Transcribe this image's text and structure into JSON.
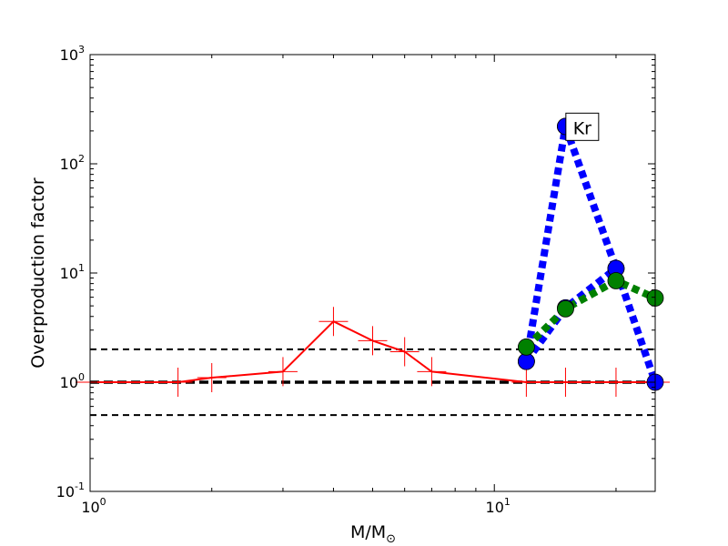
{
  "chart_data": {
    "type": "line",
    "title": "",
    "xlabel": "M/M",
    "xlabel_subscript": "⊙",
    "ylabel": "Overproduction factor",
    "x_scale": "log",
    "y_scale": "log",
    "xlim": [
      1,
      25
    ],
    "ylim": [
      0.1,
      1000
    ],
    "x_ticks": [
      {
        "value": 1,
        "base": "10",
        "exp": "0"
      },
      {
        "value": 10,
        "base": "10",
        "exp": "1"
      }
    ],
    "y_ticks": [
      {
        "value": 0.1,
        "base": "10",
        "exp": "-1"
      },
      {
        "value": 1,
        "base": "10",
        "exp": "0"
      },
      {
        "value": 10,
        "base": "10",
        "exp": "1"
      },
      {
        "value": 100,
        "base": "10",
        "exp": "2"
      },
      {
        "value": 1000,
        "base": "10",
        "exp": "3"
      }
    ],
    "reference_lines": [
      {
        "y": 2,
        "style": "dashed",
        "color": "#000000"
      },
      {
        "y": 1,
        "style": "dashed-thick",
        "color": "#000000"
      },
      {
        "y": 0.5,
        "style": "dashed",
        "color": "#000000"
      }
    ],
    "series": [
      {
        "color": "#ff0000",
        "style": "solid",
        "marker": "plus",
        "x": [
          1,
          1.65,
          2,
          3,
          4,
          5,
          6,
          7,
          12,
          15,
          20,
          25
        ],
        "y": [
          1.0,
          1.0,
          1.1,
          1.25,
          3.6,
          2.4,
          1.9,
          1.25,
          1.0,
          1.0,
          1.0,
          1.0
        ]
      },
      {
        "color": "#0000ff",
        "style": "dotted-thick",
        "marker": "circle",
        "x": [
          12,
          15
        ],
        "y": [
          1.55,
          220
        ]
      },
      {
        "color": "#0000ff",
        "style": "dotted-thick",
        "marker": "circle",
        "x": [
          15,
          20,
          25
        ],
        "y": [
          220,
          11,
          1.0
        ]
      },
      {
        "color": "#0000ff",
        "style": "dotted-thick",
        "marker": "circle",
        "x": [
          12,
          15,
          20
        ],
        "y": [
          1.55,
          4.8,
          11
        ]
      },
      {
        "color": "#008000",
        "style": "dotted-thick",
        "marker": "circle",
        "x": [
          12,
          15,
          20,
          25
        ],
        "y": [
          2.1,
          4.7,
          8.5,
          5.9
        ]
      }
    ],
    "annotations": [
      {
        "text": "Kr",
        "x": 16.5,
        "y": 210
      }
    ]
  }
}
